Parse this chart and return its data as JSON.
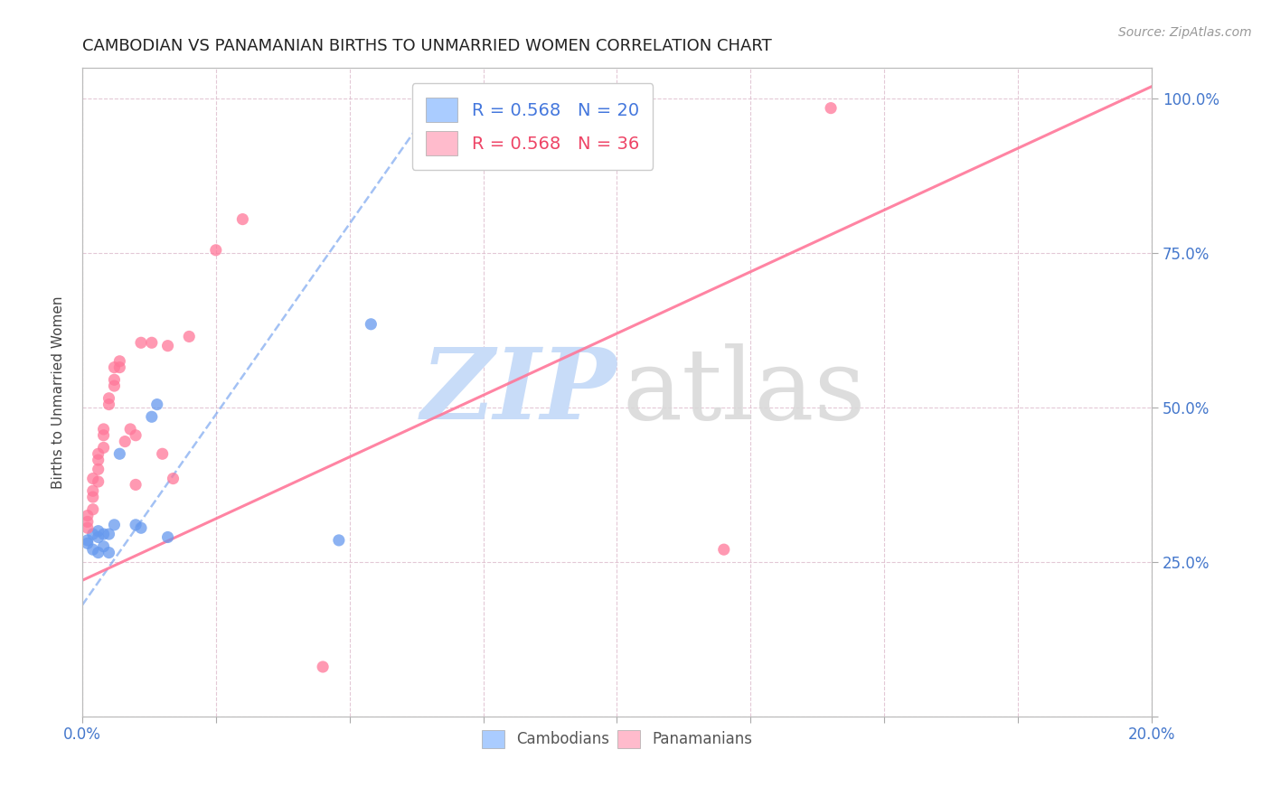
{
  "title": "CAMBODIAN VS PANAMANIAN BIRTHS TO UNMARRIED WOMEN CORRELATION CHART",
  "source": "Source: ZipAtlas.com",
  "ylabel": "Births to Unmarried Women",
  "cambodian_R": 0.568,
  "cambodian_N": 20,
  "panamanian_R": 0.568,
  "panamanian_N": 36,
  "blue_color": "#6699EE",
  "pink_color": "#FF7799",
  "blue_fill": "#aaccff",
  "pink_fill": "#ffbbcc",
  "xlim": [
    0.0,
    0.2
  ],
  "ylim": [
    0.0,
    1.05
  ],
  "xticks": [
    0.0,
    0.025,
    0.05,
    0.075,
    0.1,
    0.125,
    0.15,
    0.175,
    0.2
  ],
  "yticks": [
    0.0,
    0.25,
    0.5,
    0.75,
    1.0
  ],
  "right_ytick_labels": [
    "",
    "25.0%",
    "50.0%",
    "75.0%",
    "100.0%"
  ],
  "cambodian_x": [
    0.001,
    0.001,
    0.002,
    0.002,
    0.003,
    0.003,
    0.003,
    0.004,
    0.004,
    0.005,
    0.005,
    0.006,
    0.007,
    0.01,
    0.011,
    0.013,
    0.014,
    0.016,
    0.048,
    0.054
  ],
  "cambodian_y": [
    0.28,
    0.285,
    0.27,
    0.295,
    0.29,
    0.265,
    0.3,
    0.295,
    0.275,
    0.295,
    0.265,
    0.31,
    0.425,
    0.31,
    0.305,
    0.485,
    0.505,
    0.29,
    0.285,
    0.635
  ],
  "panamanian_x": [
    0.001,
    0.001,
    0.001,
    0.002,
    0.002,
    0.002,
    0.002,
    0.003,
    0.003,
    0.003,
    0.003,
    0.004,
    0.004,
    0.004,
    0.005,
    0.005,
    0.006,
    0.006,
    0.006,
    0.007,
    0.007,
    0.008,
    0.009,
    0.01,
    0.01,
    0.011,
    0.013,
    0.015,
    0.017,
    0.02,
    0.025,
    0.03,
    0.12,
    0.14,
    0.045,
    0.016
  ],
  "panamanian_y": [
    0.305,
    0.315,
    0.325,
    0.335,
    0.355,
    0.365,
    0.385,
    0.38,
    0.4,
    0.415,
    0.425,
    0.435,
    0.455,
    0.465,
    0.505,
    0.515,
    0.535,
    0.545,
    0.565,
    0.565,
    0.575,
    0.445,
    0.465,
    0.375,
    0.455,
    0.605,
    0.605,
    0.425,
    0.385,
    0.615,
    0.755,
    0.805,
    0.27,
    0.985,
    0.08,
    0.6
  ],
  "blue_trend_x": [
    0.0,
    0.068
  ],
  "blue_trend_y": [
    0.18,
    1.02
  ],
  "pink_trend_x": [
    0.0,
    0.2
  ],
  "pink_trend_y": [
    0.22,
    1.02
  ]
}
